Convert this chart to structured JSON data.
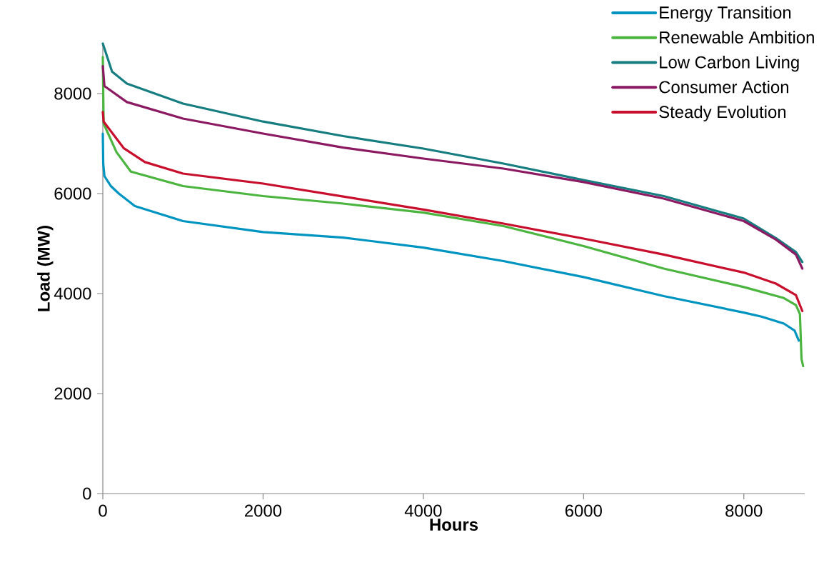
{
  "chart_data": {
    "type": "line",
    "xlabel": "Hours",
    "ylabel": "Load (MW)",
    "xlim": [
      0,
      8760
    ],
    "ylim": [
      0,
      9000
    ],
    "xticks": [
      0,
      2000,
      4000,
      6000,
      8000
    ],
    "yticks": [
      0,
      2000,
      4000,
      6000,
      8000
    ],
    "legend": "top right",
    "series": [
      {
        "name": "Energy Transition",
        "color": "#0095c0",
        "x": [
          0,
          5,
          20,
          100,
          200,
          400,
          1000,
          2000,
          3000,
          4000,
          5000,
          6000,
          7000,
          8000,
          8220,
          8500,
          8634,
          8686
        ],
        "values": [
          7200,
          6600,
          6350,
          6150,
          6000,
          5750,
          5450,
          5230,
          5120,
          4920,
          4650,
          4330,
          3950,
          3620,
          3540,
          3400,
          3260,
          3060
        ]
      },
      {
        "name": "Renewable Ambition",
        "color": "#4cb540",
        "x": [
          0,
          10,
          170,
          350,
          1000,
          2000,
          3000,
          4000,
          5000,
          6000,
          7000,
          8000,
          8500,
          8650,
          8700,
          8720,
          8740
        ],
        "values": [
          8730,
          7400,
          6830,
          6440,
          6150,
          5950,
          5800,
          5620,
          5350,
          4950,
          4500,
          4130,
          3910,
          3770,
          3590,
          2690,
          2550
        ]
      },
      {
        "name": "Low Carbon Living",
        "color": "#167d80",
        "x": [
          0,
          115,
          300,
          1000,
          2000,
          3000,
          4000,
          5000,
          6000,
          7000,
          8000,
          8400,
          8650,
          8730
        ],
        "values": [
          9000,
          8440,
          8200,
          7800,
          7440,
          7150,
          6900,
          6600,
          6270,
          5950,
          5500,
          5110,
          4830,
          4630
        ]
      },
      {
        "name": "Consumer Action",
        "color": "#8b1a62",
        "x": [
          0,
          20,
          300,
          1000,
          2000,
          3000,
          4000,
          5000,
          6000,
          7000,
          8000,
          8400,
          8650,
          8730
        ],
        "values": [
          8550,
          8150,
          7830,
          7500,
          7200,
          6920,
          6700,
          6500,
          6230,
          5900,
          5450,
          5080,
          4780,
          4500
        ]
      },
      {
        "name": "Steady Evolution",
        "color": "#c8102e",
        "x": [
          0,
          10,
          260,
          525,
          1000,
          2000,
          3000,
          4000,
          5000,
          6000,
          7000,
          8000,
          8400,
          8650,
          8730
        ],
        "values": [
          7630,
          7440,
          6910,
          6630,
          6400,
          6200,
          5940,
          5680,
          5400,
          5100,
          4780,
          4420,
          4200,
          3970,
          3650
        ]
      }
    ]
  }
}
